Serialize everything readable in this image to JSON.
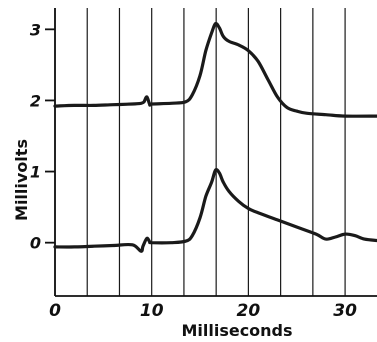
{
  "chart_data": {
    "type": "line",
    "title": "",
    "xlabel": "Milliseconds",
    "ylabel": "Millivolts",
    "xlim": [
      0,
      33.3
    ],
    "ylim": [
      -0.75,
      3.3
    ],
    "x_ticks": [
      0,
      10,
      20,
      30
    ],
    "x_tick_labels": [
      "0",
      "10",
      "20",
      "30"
    ],
    "y_ticks": [
      0,
      1,
      2,
      3
    ],
    "y_tick_labels": [
      "0",
      "1",
      "2",
      "3"
    ],
    "vertical_grid_x": [
      0,
      3.333,
      6.667,
      10,
      13.333,
      16.667,
      20,
      23.333,
      26.667,
      30
    ],
    "grid": true,
    "legend": "none",
    "line_color": "#1a1a1a",
    "series": [
      {
        "x": [
          0,
          2,
          4,
          6,
          8,
          8.9,
          9.2,
          9.5,
          9.8,
          10,
          12,
          13.5,
          14.2,
          15,
          15.6,
          16.2,
          16.6,
          17,
          17.4,
          18,
          19,
          20,
          21,
          22,
          23,
          24,
          25,
          26,
          28,
          30,
          33.3
        ],
        "y": [
          1.92,
          1.93,
          1.93,
          1.94,
          1.95,
          1.96,
          1.98,
          2.05,
          1.94,
          1.95,
          1.96,
          1.98,
          2.08,
          2.35,
          2.7,
          2.95,
          3.08,
          3.02,
          2.9,
          2.83,
          2.78,
          2.7,
          2.55,
          2.3,
          2.05,
          1.9,
          1.85,
          1.82,
          1.8,
          1.78,
          1.78
        ]
      },
      {
        "x": [
          0,
          2,
          4,
          6,
          8,
          8.9,
          9.1,
          9.5,
          9.8,
          10,
          12,
          13.5,
          14.2,
          15,
          15.6,
          16.2,
          16.6,
          17,
          17.4,
          18,
          19,
          20,
          21,
          23,
          25,
          27,
          28,
          29,
          30,
          31,
          32,
          33.3
        ],
        "y": [
          -0.06,
          -0.06,
          -0.05,
          -0.04,
          -0.03,
          -0.12,
          -0.05,
          0.06,
          0.01,
          0,
          0,
          0.02,
          0.1,
          0.35,
          0.65,
          0.85,
          1.02,
          0.98,
          0.85,
          0.72,
          0.58,
          0.48,
          0.42,
          0.32,
          0.22,
          0.12,
          0.05,
          0.08,
          0.12,
          0.1,
          0.05,
          0.03
        ]
      }
    ]
  }
}
